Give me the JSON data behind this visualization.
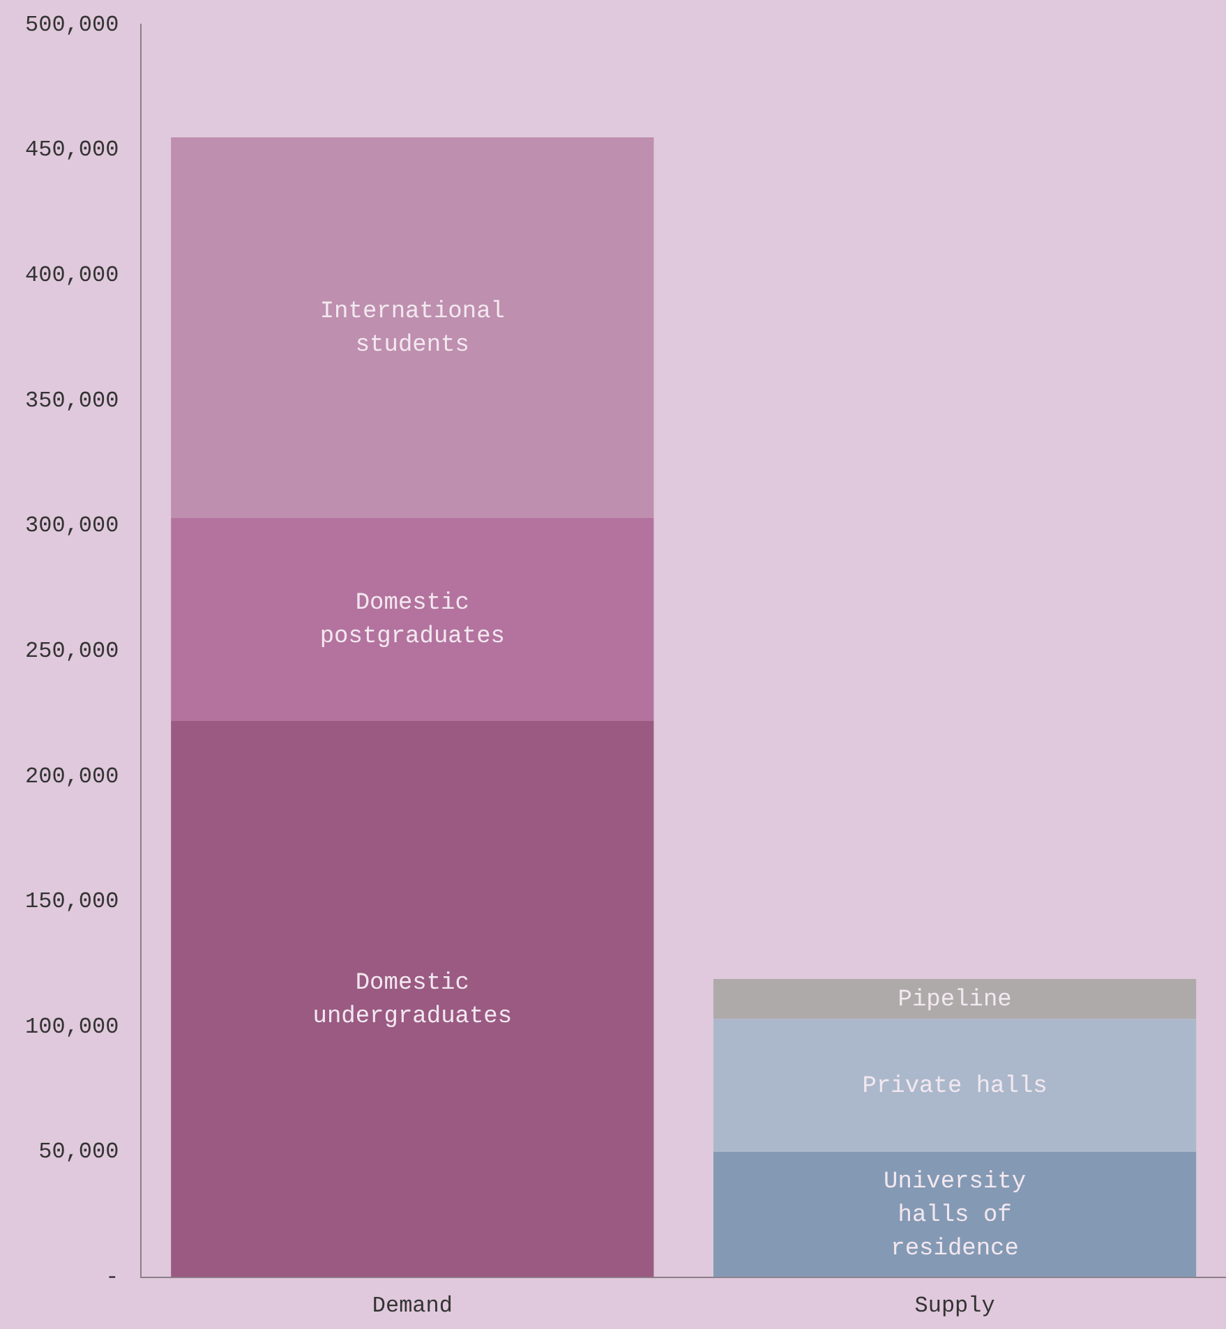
{
  "chart_data": {
    "type": "bar",
    "stacked": true,
    "categories": [
      "Demand",
      "Supply"
    ],
    "series": [
      {
        "name": "Domestic undergraduates",
        "color": "#9a5a82",
        "values": [
          222000,
          null
        ]
      },
      {
        "name": "Domestic postgraduates",
        "color": "#b3739e",
        "values": [
          81000,
          null
        ]
      },
      {
        "name": "International students",
        "color": "#be8fae",
        "values": [
          152000,
          null
        ]
      },
      {
        "name": "University halls of residence",
        "color": "#8499b4",
        "values": [
          null,
          50000
        ]
      },
      {
        "name": "Private halls",
        "color": "#abb8cb",
        "values": [
          null,
          53000
        ]
      },
      {
        "name": "Pipeline",
        "color": "#aeaaaa",
        "values": [
          null,
          16000
        ]
      }
    ],
    "ylim": [
      0,
      500000
    ],
    "yticks": [
      {
        "value": 0,
        "label": "-"
      },
      {
        "value": 50000,
        "label": "50,000"
      },
      {
        "value": 100000,
        "label": "100,000"
      },
      {
        "value": 150000,
        "label": "150,000"
      },
      {
        "value": 200000,
        "label": "200,000"
      },
      {
        "value": 250000,
        "label": "250,000"
      },
      {
        "value": 300000,
        "label": "300,000"
      },
      {
        "value": 350000,
        "label": "350,000"
      },
      {
        "value": 400000,
        "label": "400,000"
      },
      {
        "value": 450000,
        "label": "450,000"
      },
      {
        "value": 500000,
        "label": "500,000"
      }
    ],
    "grid": false,
    "legend": false
  }
}
